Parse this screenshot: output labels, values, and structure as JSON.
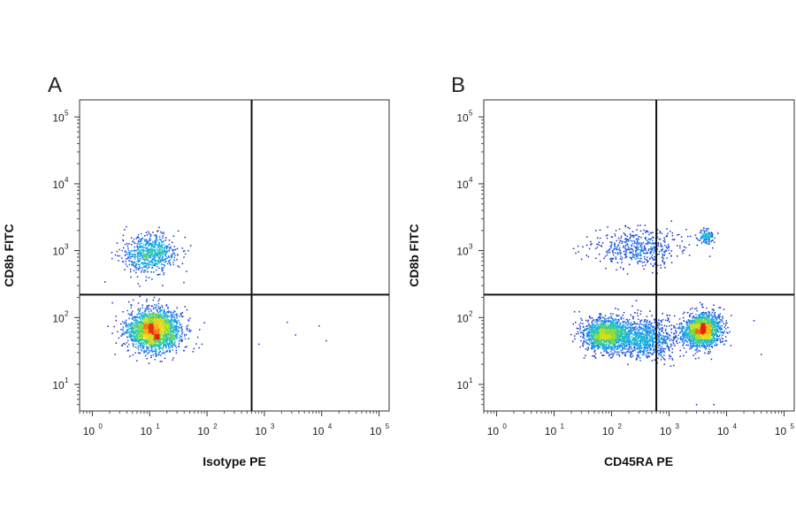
{
  "chart_data": [
    {
      "type": "scatter",
      "panel_label": "A",
      "xlabel": "Isotype PE",
      "ylabel": "CD8b FITC",
      "x_scale": "log",
      "y_scale": "log",
      "xlim": [
        0.6,
        150000
      ],
      "ylim": [
        4,
        180000
      ],
      "x_ticks": [
        {
          "base": "10",
          "exp": "0",
          "v": 1
        },
        {
          "base": "10",
          "exp": "1",
          "v": 10
        },
        {
          "base": "10",
          "exp": "2",
          "v": 100
        },
        {
          "base": "10",
          "exp": "3",
          "v": 1000
        },
        {
          "base": "10",
          "exp": "4",
          "v": 10000
        },
        {
          "base": "10",
          "exp": "5",
          "v": 100000
        }
      ],
      "y_ticks": [
        {
          "base": "10",
          "exp": "1",
          "v": 10
        },
        {
          "base": "10",
          "exp": "2",
          "v": 100
        },
        {
          "base": "10",
          "exp": "3",
          "v": 1000
        },
        {
          "base": "10",
          "exp": "4",
          "v": 10000
        },
        {
          "base": "10",
          "exp": "5",
          "v": 100000
        }
      ],
      "gates": {
        "x": 600,
        "y": 220
      },
      "grid": false,
      "legend": "none",
      "populations": [
        {
          "x_center": 12,
          "y_center": 65,
          "x_spread_decades": 0.42,
          "y_spread_decades": 0.28,
          "count": 2200
        },
        {
          "x_center": 10,
          "y_center": 900,
          "x_spread_decades": 0.45,
          "y_spread_decades": 0.25,
          "count": 700
        }
      ],
      "outliers": [
        {
          "x": 2500,
          "y": 85
        },
        {
          "x": 9000,
          "y": 75
        },
        {
          "x": 3500,
          "y": 55
        },
        {
          "x": 12000,
          "y": 45
        },
        {
          "x": 800,
          "y": 40
        }
      ]
    },
    {
      "type": "scatter",
      "panel_label": "B",
      "xlabel": "CD45RA PE",
      "ylabel": "CD8b FITC",
      "x_scale": "log",
      "y_scale": "log",
      "xlim": [
        0.6,
        150000
      ],
      "ylim": [
        4,
        180000
      ],
      "x_ticks": [
        {
          "base": "10",
          "exp": "0",
          "v": 1
        },
        {
          "base": "10",
          "exp": "1",
          "v": 10
        },
        {
          "base": "10",
          "exp": "2",
          "v": 100
        },
        {
          "base": "10",
          "exp": "3",
          "v": 1000
        },
        {
          "base": "10",
          "exp": "4",
          "v": 10000
        },
        {
          "base": "10",
          "exp": "5",
          "v": 100000
        }
      ],
      "y_ticks": [
        {
          "base": "10",
          "exp": "1",
          "v": 10
        },
        {
          "base": "10",
          "exp": "2",
          "v": 100
        },
        {
          "base": "10",
          "exp": "3",
          "v": 1000
        },
        {
          "base": "10",
          "exp": "4",
          "v": 10000
        },
        {
          "base": "10",
          "exp": "5",
          "v": 100000
        }
      ],
      "gates": {
        "x": 600,
        "y": 220
      },
      "grid": false,
      "legend": "none",
      "populations": [
        {
          "x_center": 80,
          "y_center": 55,
          "x_spread_decades": 0.38,
          "y_spread_decades": 0.22,
          "count": 1500
        },
        {
          "x_center": 3800,
          "y_center": 65,
          "x_spread_decades": 0.28,
          "y_spread_decades": 0.22,
          "count": 1800
        },
        {
          "x_center": 400,
          "y_center": 50,
          "x_spread_decades": 0.5,
          "y_spread_decades": 0.28,
          "count": 900
        },
        {
          "x_center": 300,
          "y_center": 1100,
          "x_spread_decades": 0.7,
          "y_spread_decades": 0.25,
          "count": 500
        },
        {
          "x_center": 4500,
          "y_center": 1600,
          "x_spread_decades": 0.12,
          "y_spread_decades": 0.12,
          "count": 120
        }
      ],
      "outliers": [
        {
          "x": 40000,
          "y": 28
        },
        {
          "x": 30000,
          "y": 90
        },
        {
          "x": 3000,
          "y": 5
        },
        {
          "x": 6000,
          "y": 5
        }
      ]
    }
  ]
}
